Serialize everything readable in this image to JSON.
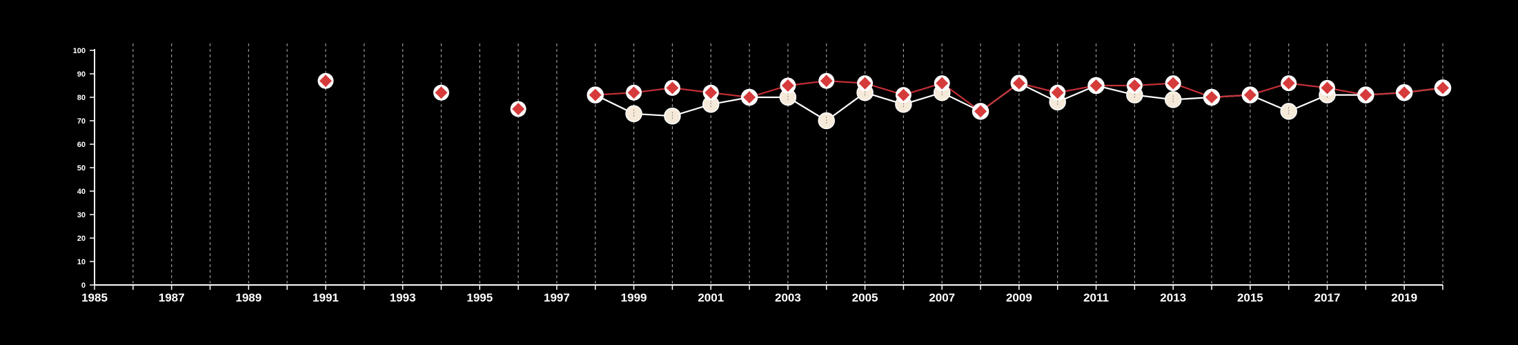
{
  "chart_data": {
    "type": "line",
    "title": "",
    "xlabel": "",
    "ylabel": "",
    "xlim": [
      1985,
      2020
    ],
    "ylim": [
      0,
      100
    ],
    "x_ticks": [
      1985,
      1987,
      1989,
      1991,
      1993,
      1995,
      1997,
      1999,
      2001,
      2003,
      2005,
      2007,
      2009,
      2011,
      2013,
      2015,
      2017,
      2019
    ],
    "y_ticks": [
      0,
      10,
      20,
      30,
      40,
      50,
      60,
      70,
      80,
      90,
      100
    ],
    "vertical_gridlines_every_year": true,
    "horizontal_grid": false,
    "legend": "none",
    "background_color": "#000000",
    "series": [
      {
        "key": "cream",
        "color": "#f5ead9",
        "line_color": "#ffffff",
        "marker": "circle",
        "points": [
          {
            "x": 1998,
            "y": 81
          },
          {
            "x": 1999,
            "y": 73
          },
          {
            "x": 2000,
            "y": 72
          },
          {
            "x": 2001,
            "y": 77
          },
          {
            "x": 2002,
            "y": 80
          },
          {
            "x": 2003,
            "y": 80
          },
          {
            "x": 2004,
            "y": 70
          },
          {
            "x": 2005,
            "y": 82
          },
          {
            "x": 2006,
            "y": 77
          },
          {
            "x": 2007,
            "y": 82
          },
          {
            "x": 2008,
            "y": 74
          },
          {
            "x": 2009,
            "y": 86
          },
          {
            "x": 2010,
            "y": 78
          },
          {
            "x": 2011,
            "y": 85
          },
          {
            "x": 2012,
            "y": 81
          },
          {
            "x": 2013,
            "y": 79
          },
          {
            "x": 2014,
            "y": 80
          },
          {
            "x": 2015,
            "y": 81
          },
          {
            "x": 2016,
            "y": 74
          },
          {
            "x": 2017,
            "y": 81
          },
          {
            "x": 2018,
            "y": 81
          },
          {
            "x": 2019,
            "y": 82
          },
          {
            "x": 2020,
            "y": 84
          }
        ]
      },
      {
        "key": "red",
        "color": "#d63b3b",
        "line_color": "#c62f36",
        "marker": "diamond",
        "points": [
          {
            "x": 1991,
            "y": 87
          },
          {
            "x": 1994,
            "y": 82
          },
          {
            "x": 1996,
            "y": 75
          },
          {
            "x": 1998,
            "y": 81
          },
          {
            "x": 1999,
            "y": 82
          },
          {
            "x": 2000,
            "y": 84
          },
          {
            "x": 2001,
            "y": 82
          },
          {
            "x": 2002,
            "y": 80
          },
          {
            "x": 2003,
            "y": 85
          },
          {
            "x": 2004,
            "y": 87
          },
          {
            "x": 2005,
            "y": 86
          },
          {
            "x": 2006,
            "y": 81
          },
          {
            "x": 2007,
            "y": 86
          },
          {
            "x": 2008,
            "y": 74
          },
          {
            "x": 2009,
            "y": 86
          },
          {
            "x": 2010,
            "y": 82
          },
          {
            "x": 2011,
            "y": 85
          },
          {
            "x": 2012,
            "y": 85
          },
          {
            "x": 2013,
            "y": 86
          },
          {
            "x": 2014,
            "y": 80
          },
          {
            "x": 2015,
            "y": 81
          },
          {
            "x": 2016,
            "y": 86
          },
          {
            "x": 2017,
            "y": 84
          },
          {
            "x": 2018,
            "y": 81
          },
          {
            "x": 2019,
            "y": 82
          },
          {
            "x": 2020,
            "y": 84
          }
        ]
      }
    ]
  }
}
